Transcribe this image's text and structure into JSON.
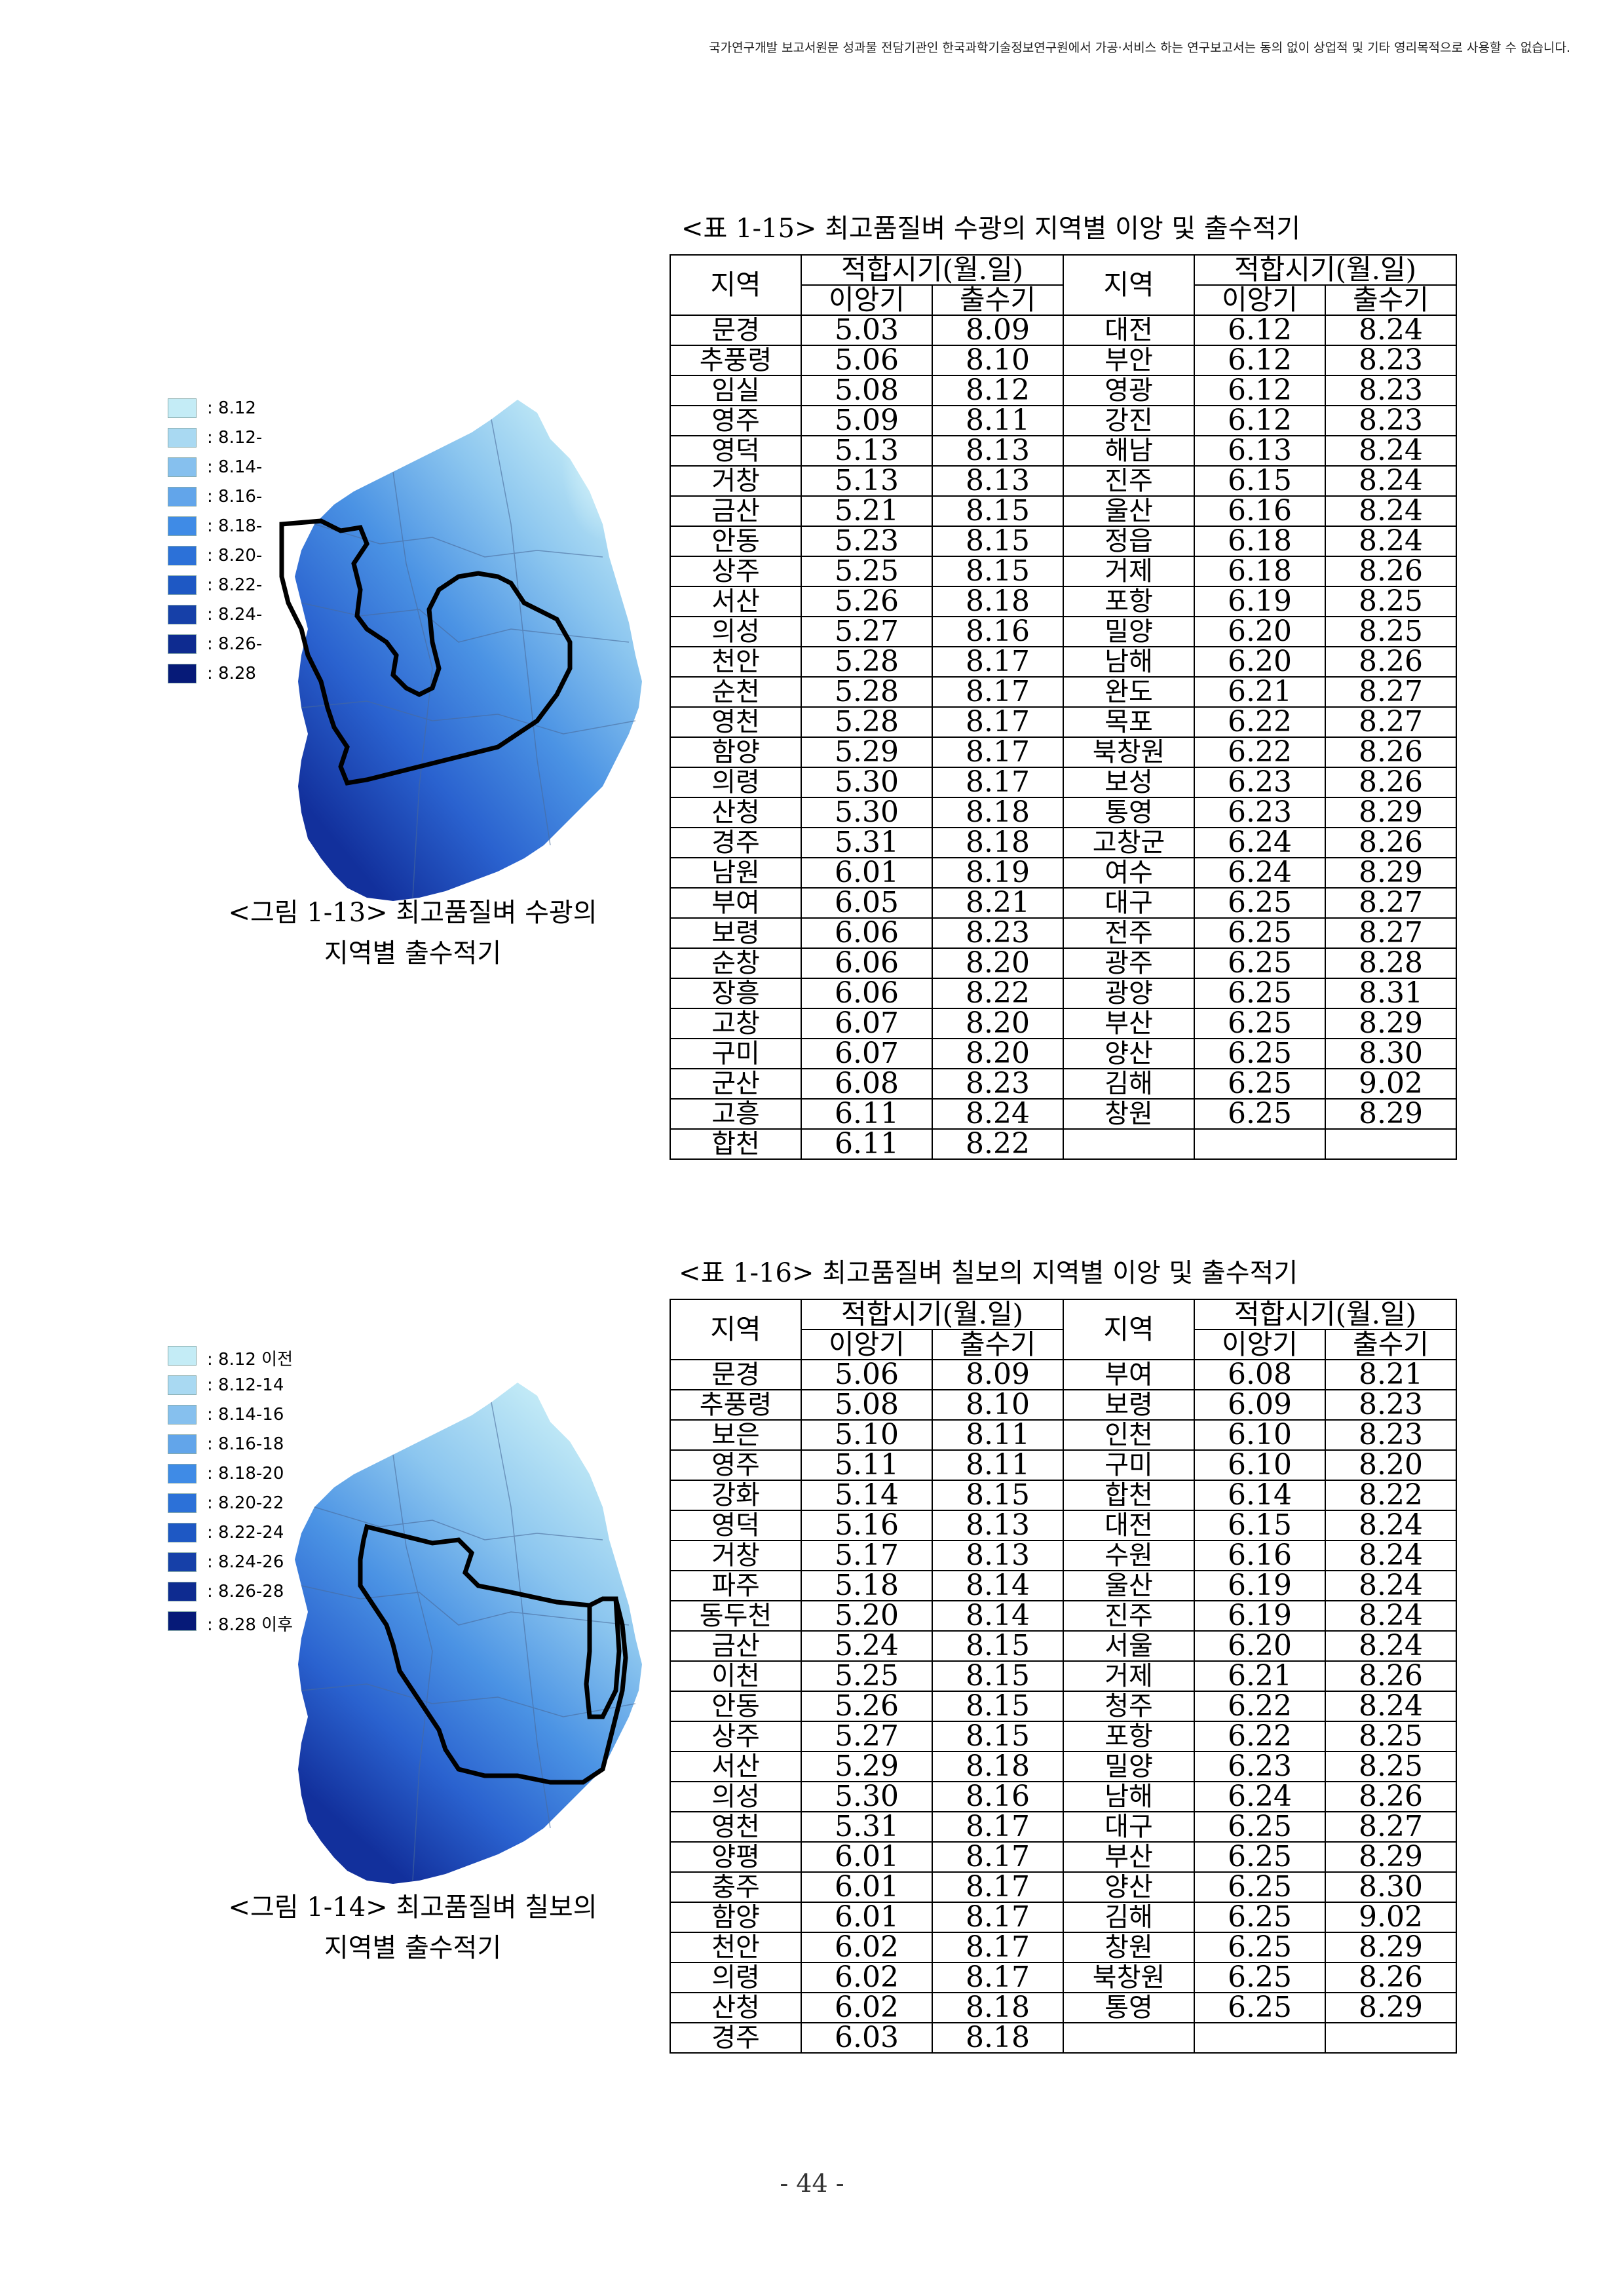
{
  "header_notice": "국가연구개발 보고서원문 성과물 전담기관인 한국과학기술정보연구원에서 가공·서비스 하는 연구보고서는 동의 없이 상업적 및 기타 영리목적으로 사용할 수 없습니다.",
  "table1": {
    "caption": "<표 1-15> 최고품질벼 수광의 지역별 이앙 및 출수적기",
    "h_region": "지역",
    "h_period": "적합시기(월.일)",
    "h_transplant": "이앙기",
    "h_heading": "출수기",
    "rows": [
      [
        "문경",
        "5.03",
        "8.09",
        "대전",
        "6.12",
        "8.24"
      ],
      [
        "추풍령",
        "5.06",
        "8.10",
        "부안",
        "6.12",
        "8.23"
      ],
      [
        "임실",
        "5.08",
        "8.12",
        "영광",
        "6.12",
        "8.23"
      ],
      [
        "영주",
        "5.09",
        "8.11",
        "강진",
        "6.12",
        "8.23"
      ],
      [
        "영덕",
        "5.13",
        "8.13",
        "해남",
        "6.13",
        "8.24"
      ],
      [
        "거창",
        "5.13",
        "8.13",
        "진주",
        "6.15",
        "8.24"
      ],
      [
        "금산",
        "5.21",
        "8.15",
        "울산",
        "6.16",
        "8.24"
      ],
      [
        "안동",
        "5.23",
        "8.15",
        "정읍",
        "6.18",
        "8.24"
      ],
      [
        "상주",
        "5.25",
        "8.15",
        "거제",
        "6.18",
        "8.26"
      ],
      [
        "서산",
        "5.26",
        "8.18",
        "포항",
        "6.19",
        "8.25"
      ],
      [
        "의성",
        "5.27",
        "8.16",
        "밀양",
        "6.20",
        "8.25"
      ],
      [
        "천안",
        "5.28",
        "8.17",
        "남해",
        "6.20",
        "8.26"
      ],
      [
        "순천",
        "5.28",
        "8.17",
        "완도",
        "6.21",
        "8.27"
      ],
      [
        "영천",
        "5.28",
        "8.17",
        "목포",
        "6.22",
        "8.27"
      ],
      [
        "함양",
        "5.29",
        "8.17",
        "북창원",
        "6.22",
        "8.26"
      ],
      [
        "의령",
        "5.30",
        "8.17",
        "보성",
        "6.23",
        "8.26"
      ],
      [
        "산청",
        "5.30",
        "8.18",
        "통영",
        "6.23",
        "8.29"
      ],
      [
        "경주",
        "5.31",
        "8.18",
        "고창군",
        "6.24",
        "8.26"
      ],
      [
        "남원",
        "6.01",
        "8.19",
        "여수",
        "6.24",
        "8.29"
      ],
      [
        "부여",
        "6.05",
        "8.21",
        "대구",
        "6.25",
        "8.27"
      ],
      [
        "보령",
        "6.06",
        "8.23",
        "전주",
        "6.25",
        "8.27"
      ],
      [
        "순창",
        "6.06",
        "8.20",
        "광주",
        "6.25",
        "8.28"
      ],
      [
        "장흥",
        "6.06",
        "8.22",
        "광양",
        "6.25",
        "8.31"
      ],
      [
        "고창",
        "6.07",
        "8.20",
        "부산",
        "6.25",
        "8.29"
      ],
      [
        "구미",
        "6.07",
        "8.20",
        "양산",
        "6.25",
        "8.30"
      ],
      [
        "군산",
        "6.08",
        "8.23",
        "김해",
        "6.25",
        "9.02"
      ],
      [
        "고흥",
        "6.11",
        "8.24",
        "창원",
        "6.25",
        "8.29"
      ],
      [
        "합천",
        "6.11",
        "8.22",
        "",
        "",
        ""
      ]
    ]
  },
  "table2": {
    "caption": "<표 1-16> 최고품질벼 칠보의 지역별 이앙 및 출수적기",
    "h_region": "지역",
    "h_period": "적합시기(월.일)",
    "h_transplant": "이앙기",
    "h_heading": "출수기",
    "rows": [
      [
        "문경",
        "5.06",
        "8.09",
        "부여",
        "6.08",
        "8.21"
      ],
      [
        "추풍령",
        "5.08",
        "8.10",
        "보령",
        "6.09",
        "8.23"
      ],
      [
        "보은",
        "5.10",
        "8.11",
        "인천",
        "6.10",
        "8.23"
      ],
      [
        "영주",
        "5.11",
        "8.11",
        "구미",
        "6.10",
        "8.20"
      ],
      [
        "강화",
        "5.14",
        "8.15",
        "합천",
        "6.14",
        "8.22"
      ],
      [
        "영덕",
        "5.16",
        "8.13",
        "대전",
        "6.15",
        "8.24"
      ],
      [
        "거창",
        "5.17",
        "8.13",
        "수원",
        "6.16",
        "8.24"
      ],
      [
        "파주",
        "5.18",
        "8.14",
        "울산",
        "6.19",
        "8.24"
      ],
      [
        "동두천",
        "5.20",
        "8.14",
        "진주",
        "6.19",
        "8.24"
      ],
      [
        "금산",
        "5.24",
        "8.15",
        "서울",
        "6.20",
        "8.24"
      ],
      [
        "이천",
        "5.25",
        "8.15",
        "거제",
        "6.21",
        "8.26"
      ],
      [
        "안동",
        "5.26",
        "8.15",
        "청주",
        "6.22",
        "8.24"
      ],
      [
        "상주",
        "5.27",
        "8.15",
        "포항",
        "6.22",
        "8.25"
      ],
      [
        "서산",
        "5.29",
        "8.18",
        "밀양",
        "6.23",
        "8.25"
      ],
      [
        "의성",
        "5.30",
        "8.16",
        "남해",
        "6.24",
        "8.26"
      ],
      [
        "영천",
        "5.31",
        "8.17",
        "대구",
        "6.25",
        "8.27"
      ],
      [
        "양평",
        "6.01",
        "8.17",
        "부산",
        "6.25",
        "8.29"
      ],
      [
        "충주",
        "6.01",
        "8.17",
        "양산",
        "6.25",
        "8.30"
      ],
      [
        "함양",
        "6.01",
        "8.17",
        "김해",
        "6.25",
        "9.02"
      ],
      [
        "천안",
        "6.02",
        "8.17",
        "창원",
        "6.25",
        "8.29"
      ],
      [
        "의령",
        "6.02",
        "8.17",
        "북창원",
        "6.25",
        "8.26"
      ],
      [
        "산청",
        "6.02",
        "8.18",
        "통영",
        "6.25",
        "8.29"
      ],
      [
        "경주",
        "6.03",
        "8.18",
        "",
        "",
        ""
      ]
    ]
  },
  "figure1": {
    "caption_line1": "<그림 1-13> 최고품질벼 수광의",
    "caption_line2": "지역별 출수적기",
    "legend": [
      {
        "label": ": 8.12",
        "color": "#c4ecf6"
      },
      {
        "label": ": 8.12-",
        "color": "#a9d9f2"
      },
      {
        "label": ": 8.14-",
        "color": "#86c0ee"
      },
      {
        "label": ": 8.16-",
        "color": "#62a5ea"
      },
      {
        "label": ": 8.18-",
        "color": "#3f8be6"
      },
      {
        "label": ": 8.20-",
        "color": "#2c71d8"
      },
      {
        "label": ": 8.22-",
        "color": "#1e58c4"
      },
      {
        "label": ": 8.24-",
        "color": "#1640a8"
      },
      {
        "label": ": 8.26-",
        "color": "#0e2b90"
      },
      {
        "label": ": 8.28",
        "color": "#061a78"
      }
    ]
  },
  "figure2": {
    "caption_line1": "<그림 1-14> 최고품질벼 칠보의",
    "caption_line2": "지역별 출수적기",
    "legend": [
      {
        "label": ": 8.12 이전",
        "color": "#c4ecf6"
      },
      {
        "label": ": 8.12-14",
        "color": "#a9d9f2"
      },
      {
        "label": ": 8.14-16",
        "color": "#86c0ee"
      },
      {
        "label": ": 8.16-18",
        "color": "#62a5ea"
      },
      {
        "label": ": 8.18-20",
        "color": "#3f8be6"
      },
      {
        "label": ": 8.20-22",
        "color": "#2c71d8"
      },
      {
        "label": ": 8.22-24",
        "color": "#1e58c4"
      },
      {
        "label": ": 8.24-26",
        "color": "#1640a8"
      },
      {
        "label": ": 8.26-28",
        "color": "#0e2b90"
      },
      {
        "label": ": 8.28 이후",
        "color": "#061a78"
      }
    ]
  },
  "page_number": "- 44 -"
}
